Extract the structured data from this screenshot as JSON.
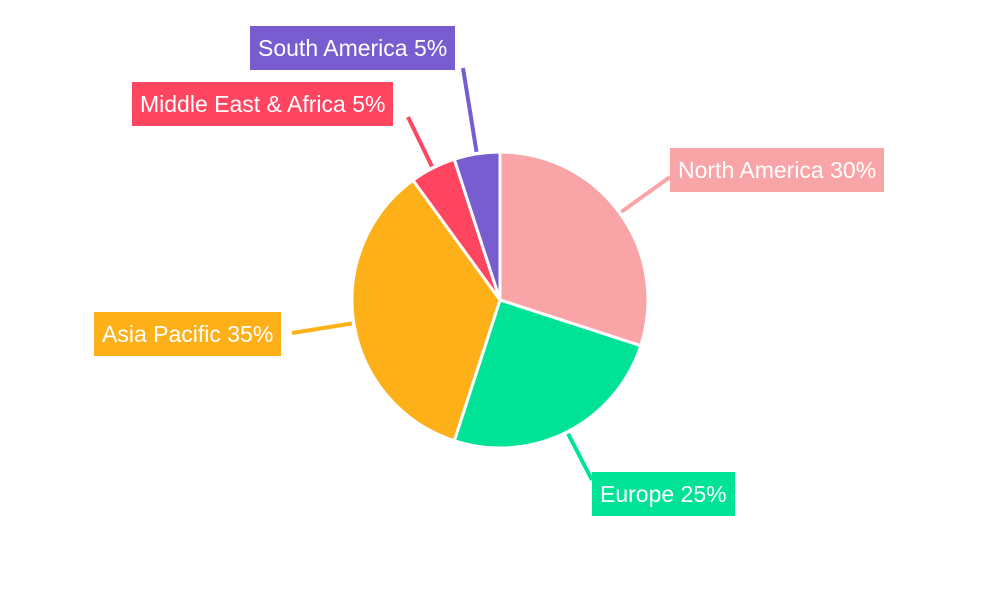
{
  "chart_data": {
    "type": "pie",
    "title": "",
    "direction": "clockwise",
    "start": "top",
    "slices": [
      {
        "name": "North America",
        "value": 30,
        "label": "North America 30%",
        "color": "#F9A5A7"
      },
      {
        "name": "Europe",
        "value": 25,
        "label": "Europe 25%",
        "color": "#00E396"
      },
      {
        "name": "Asia Pacific",
        "value": 35,
        "label": "Asia Pacific 35%",
        "color": "#FEB019"
      },
      {
        "name": "Middle East & Africa",
        "value": 5,
        "label": "Middle East & Africa 5%",
        "color": "#FF4560"
      },
      {
        "name": "South America",
        "value": 5,
        "label": "South America 5%",
        "color": "#775DD0"
      }
    ]
  }
}
